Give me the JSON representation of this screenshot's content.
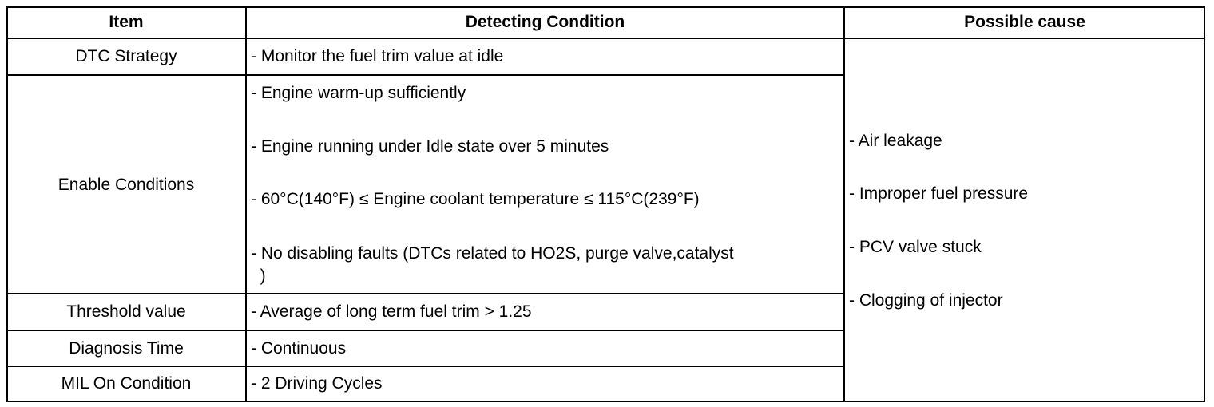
{
  "headers": [
    "Item",
    "Detecting Condition",
    "Possible cause"
  ],
  "rows": [
    {
      "item": "DTC Strategy",
      "conditions": [
        "- Monitor the fuel trim value at idle"
      ]
    },
    {
      "item": "Enable Conditions",
      "conditions": [
        "- Engine warm-up sufficiently",
        "- Engine running under Idle state over 5 minutes",
        "- 60°C(140°F) ≤ Engine coolant temperature ≤ 115°C(239°F)",
        "- No disabling faults (DTCs related to HO2S, purge valve,catalyst",
        "  )"
      ]
    },
    {
      "item": "Threshold value",
      "conditions": [
        "- Average of long term fuel trim > 1.25"
      ]
    },
    {
      "item": "Diagnosis Time",
      "conditions": [
        "- Continuous"
      ]
    },
    {
      "item": "MIL On Condition",
      "conditions": [
        "- 2 Driving Cycles"
      ]
    }
  ],
  "possible_causes": [
    "- Air leakage",
    "- Improper fuel pressure",
    "- PCV valve stuck",
    "- Clogging of injector"
  ]
}
